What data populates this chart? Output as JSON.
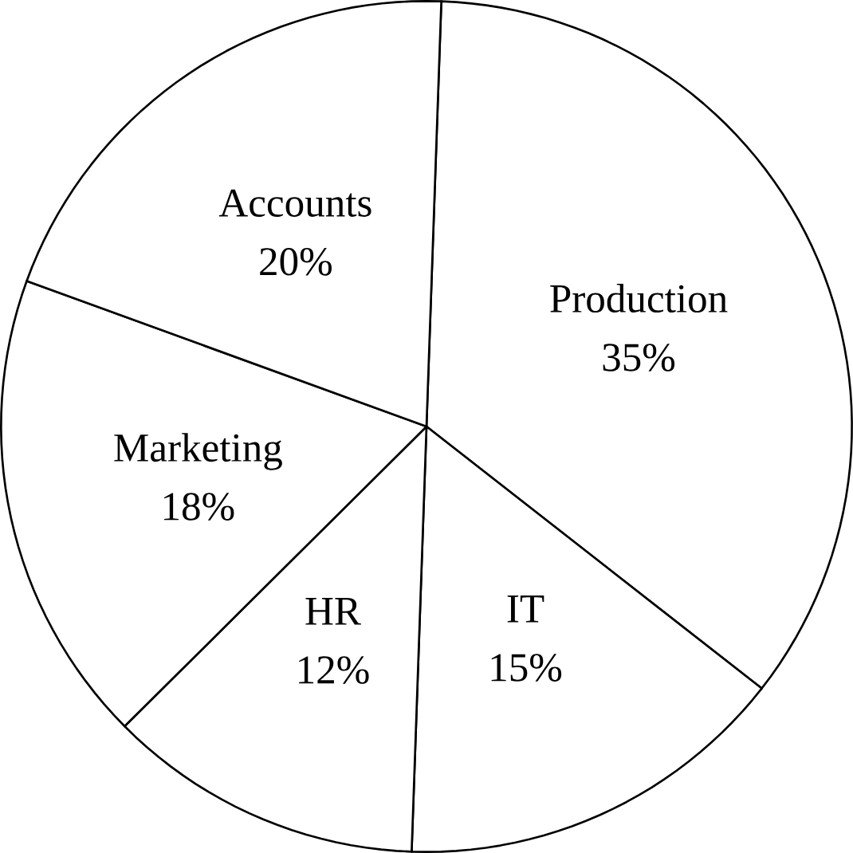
{
  "chart_data": {
    "type": "pie",
    "categories": [
      "Production",
      "IT",
      "HR",
      "Marketing",
      "Accounts"
    ],
    "values": [
      35,
      15,
      12,
      18,
      20
    ],
    "value_labels": [
      "35%",
      "15%",
      "12%",
      "18%",
      "20%"
    ],
    "colors": [
      "#ffffff",
      "#ffffff",
      "#ffffff",
      "#ffffff",
      "#ffffff"
    ]
  }
}
